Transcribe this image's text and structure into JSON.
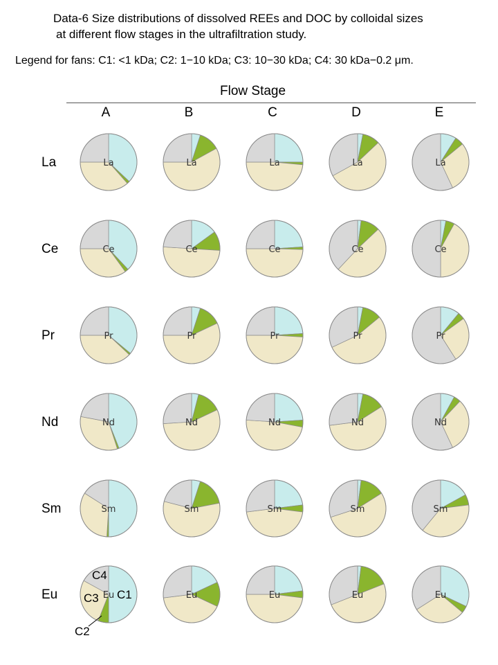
{
  "title_line1": "Data-6  Size distributions of dissolved REEs and DOC by colloidal sizes",
  "title_line2": "at different flow stages in the ultrafiltration study.",
  "legend_note": "Legend for fans: C1: <1 kDa;  C2: 1−10 kDa; C3: 10−30 kDa; C4: 30 kDa−0.2 μm.",
  "flow_stage_label": "Flow Stage",
  "columns": [
    "A",
    "B",
    "C",
    "D",
    "E"
  ],
  "rows": [
    "La",
    "Ce",
    "Pr",
    "Nd",
    "Sm",
    "Eu"
  ],
  "colors": {
    "C1": "#c8ecec",
    "C2": "#8ab52e",
    "C3": "#f0e8c8",
    "C4": "#d8d8d8",
    "outline": "#8a8a8a"
  },
  "callouts": {
    "c1": "C1",
    "c2": "C2",
    "c3": "C3",
    "c4": "C4"
  },
  "chart_data": {
    "type": "pie",
    "size_fractions": [
      "C1",
      "C2",
      "C3",
      "C4"
    ],
    "fraction_legend": {
      "C1": "<1 kDa",
      "C2": "1−10 kDa",
      "C3": "10−30 kDa",
      "C4": "30 kDa−0.2 μm"
    },
    "columns": [
      "A",
      "B",
      "C",
      "D",
      "E"
    ],
    "rows": [
      "La",
      "Ce",
      "Pr",
      "Nd",
      "Sm",
      "Eu"
    ],
    "values": {
      "La": [
        [
          37,
          1.5,
          36.5,
          25
        ],
        [
          5,
          12,
          58,
          25
        ],
        [
          25,
          1.5,
          48.5,
          25
        ],
        [
          3,
          10,
          54,
          33
        ],
        [
          9,
          5,
          29,
          57
        ]
      ],
      "Ce": [
        [
          38,
          2,
          35,
          25
        ],
        [
          15,
          11,
          50,
          24
        ],
        [
          24,
          1.5,
          49.5,
          25
        ],
        [
          2,
          11,
          49,
          38
        ],
        [
          3,
          5,
          42,
          50
        ]
      ],
      "Pr": [
        [
          36,
          1,
          38,
          25
        ],
        [
          5,
          13,
          57,
          25
        ],
        [
          24,
          2,
          49,
          25
        ],
        [
          3,
          11,
          54,
          32
        ],
        [
          11,
          4,
          26,
          59
        ]
      ],
      "Nd": [
        [
          44,
          1,
          33,
          22
        ],
        [
          4,
          14,
          56,
          26
        ],
        [
          24,
          4,
          48,
          24
        ],
        [
          3,
          13,
          57,
          27
        ],
        [
          8,
          4,
          31,
          57
        ]
      ],
      "Sm": [
        [
          50,
          1,
          33,
          16
        ],
        [
          5,
          17,
          57,
          21
        ],
        [
          23,
          4,
          46,
          27
        ],
        [
          2,
          14,
          54,
          30
        ],
        [
          17,
          6,
          38,
          39
        ]
      ],
      "Eu": [
        [
          50,
          6,
          27,
          17
        ],
        [
          18,
          14,
          41,
          27
        ],
        [
          23,
          4,
          48,
          25
        ],
        [
          2,
          17,
          50,
          31
        ],
        [
          32,
          4,
          30,
          34
        ]
      ]
    }
  }
}
